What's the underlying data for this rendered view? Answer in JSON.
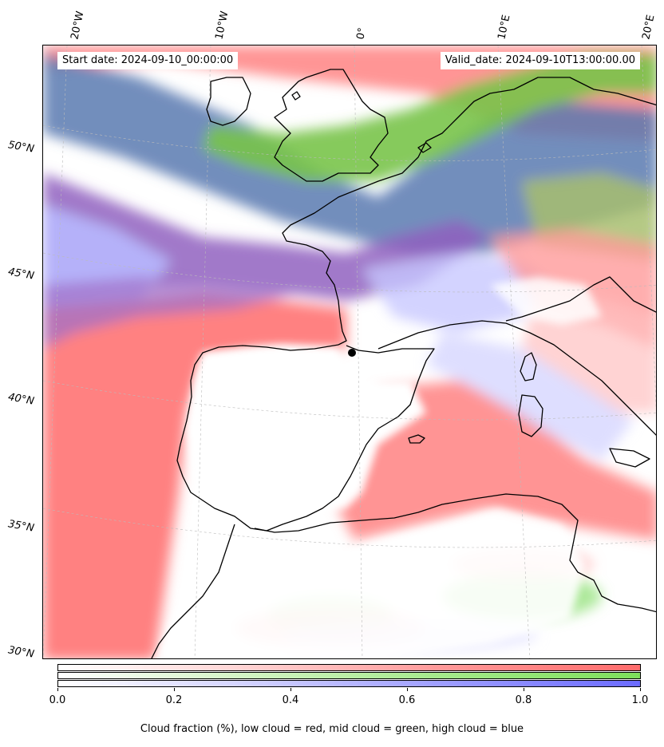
{
  "header": {
    "start_date": "Start date: 2024-09-10_00:00:00",
    "valid_date": "Valid_date: 2024-09-10T13:00:00.00"
  },
  "map": {
    "longitude_ticks": [
      "20°W",
      "10°W",
      "0°",
      "10°E",
      "20°E"
    ],
    "latitude_ticks": [
      "50°N",
      "45°N",
      "40°N",
      "35°N",
      "30°N"
    ],
    "marker": "black-dot"
  },
  "colorbar": {
    "ticks": [
      "0.0",
      "0.2",
      "0.4",
      "0.6",
      "0.8",
      "1.0"
    ],
    "label": "Cloud fraction (%), low cloud = red, mid cloud = green, high cloud = blue",
    "colors": {
      "low_cloud": "#ff6b6b",
      "mid_cloud": "#7ddf5a",
      "high_cloud": "#6b6bff"
    }
  }
}
